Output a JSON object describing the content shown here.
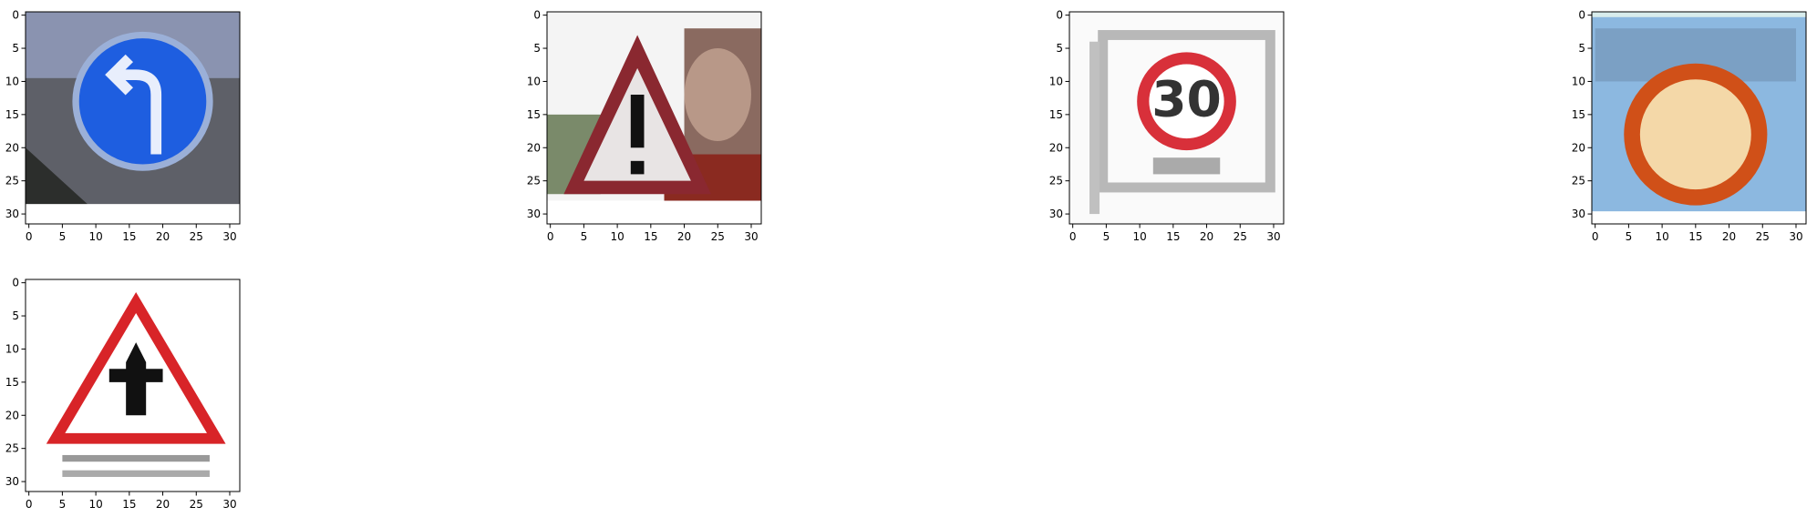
{
  "chart_data": [
    {
      "type": "image",
      "xlim": [
        -0.5,
        31.5
      ],
      "ylim": [
        31.5,
        -0.5
      ],
      "xticks": [
        0,
        5,
        10,
        15,
        20,
        25,
        30
      ],
      "yticks": [
        0,
        5,
        10,
        15,
        20,
        25,
        30
      ]
    },
    {
      "type": "image",
      "xlim": [
        -0.5,
        31.5
      ],
      "ylim": [
        31.5,
        -0.5
      ],
      "xticks": [
        0,
        5,
        10,
        15,
        20,
        25,
        30
      ],
      "yticks": [
        0,
        5,
        10,
        15,
        20,
        25,
        30
      ]
    },
    {
      "type": "image",
      "xlim": [
        -0.5,
        31.5
      ],
      "ylim": [
        31.5,
        -0.5
      ],
      "xticks": [
        0,
        5,
        10,
        15,
        20,
        25,
        30
      ],
      "yticks": [
        0,
        5,
        10,
        15,
        20,
        25,
        30
      ],
      "image_text": "30"
    },
    {
      "type": "image",
      "xlim": [
        -0.5,
        31.5
      ],
      "ylim": [
        31.5,
        -0.5
      ],
      "xticks": [
        0,
        5,
        10,
        15,
        20,
        25,
        30
      ],
      "yticks": [
        0,
        5,
        10,
        15,
        20,
        25,
        30
      ]
    },
    {
      "type": "image",
      "xlim": [
        -0.5,
        31.5
      ],
      "ylim": [
        31.5,
        -0.5
      ],
      "xticks": [
        0,
        5,
        10,
        15,
        20,
        25,
        30
      ],
      "yticks": [
        0,
        5,
        10,
        15,
        20,
        25,
        30
      ]
    }
  ]
}
